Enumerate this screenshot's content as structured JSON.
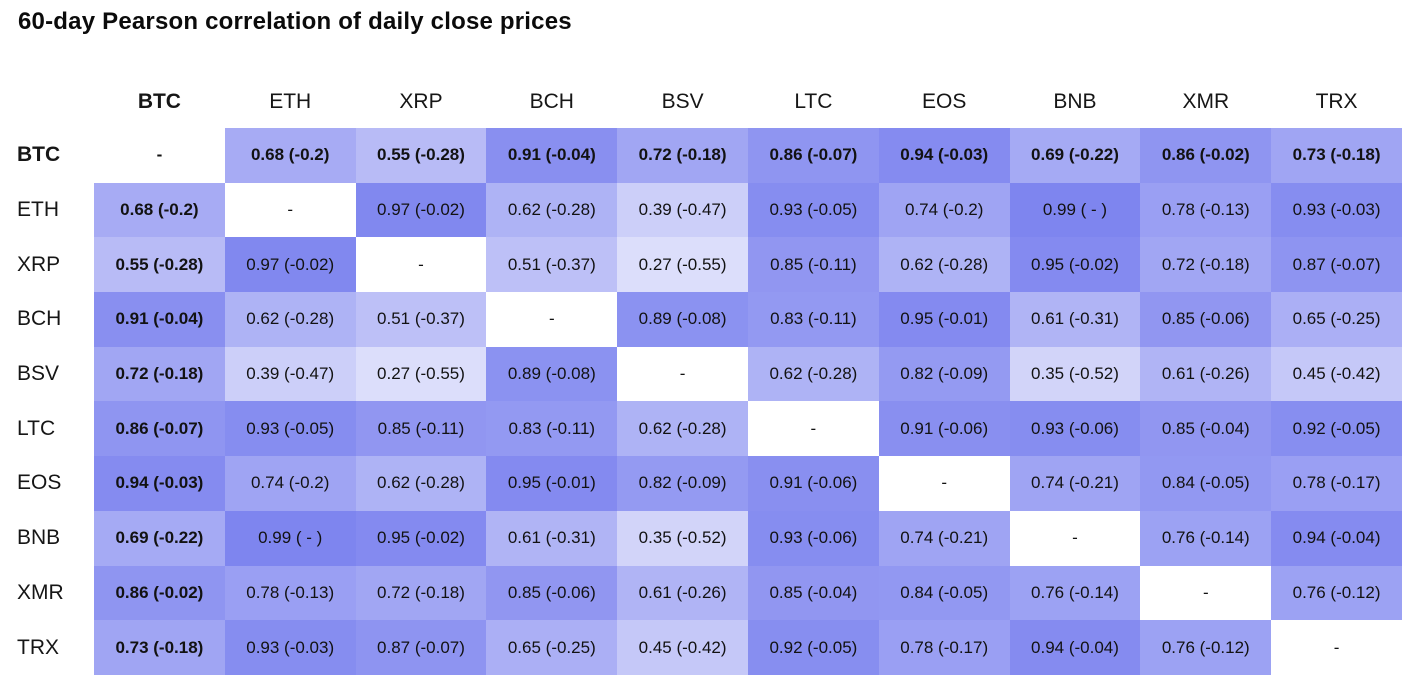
{
  "title": "60-day Pearson correlation of daily close prices",
  "chart_data": {
    "type": "heatmap",
    "title": "60-day Pearson correlation of daily close prices",
    "cell_value_format": "correlation (spread)",
    "labels": [
      "BTC",
      "ETH",
      "XRP",
      "BCH",
      "BSV",
      "LTC",
      "EOS",
      "BNB",
      "XMR",
      "TRX"
    ],
    "diagonal_label": "-",
    "corr": [
      [
        null,
        0.68,
        0.55,
        0.91,
        0.72,
        0.86,
        0.94,
        0.69,
        0.86,
        0.73
      ],
      [
        0.68,
        null,
        0.97,
        0.62,
        0.39,
        0.93,
        0.74,
        0.99,
        0.78,
        0.93
      ],
      [
        0.55,
        0.97,
        null,
        0.51,
        0.27,
        0.85,
        0.62,
        0.95,
        0.72,
        0.87
      ],
      [
        0.91,
        0.62,
        0.51,
        null,
        0.89,
        0.83,
        0.95,
        0.61,
        0.85,
        0.65
      ],
      [
        0.72,
        0.39,
        0.27,
        0.89,
        null,
        0.62,
        0.82,
        0.35,
        0.61,
        0.45
      ],
      [
        0.86,
        0.93,
        0.85,
        0.83,
        0.62,
        null,
        0.91,
        0.93,
        0.85,
        0.92
      ],
      [
        0.94,
        0.74,
        0.62,
        0.95,
        0.82,
        0.91,
        null,
        0.74,
        0.84,
        0.78
      ],
      [
        0.69,
        0.99,
        0.95,
        0.61,
        0.35,
        0.93,
        0.74,
        null,
        0.76,
        0.94
      ],
      [
        0.86,
        0.78,
        0.72,
        0.85,
        0.61,
        0.85,
        0.84,
        0.76,
        null,
        0.76
      ],
      [
        0.73,
        0.93,
        0.87,
        0.65,
        0.45,
        0.92,
        0.78,
        0.94,
        0.76,
        null
      ]
    ],
    "cell_labels": [
      [
        "-",
        "0.68 (-0.2)",
        "0.55 (-0.28)",
        "0.91 (-0.04)",
        "0.72 (-0.18)",
        "0.86 (-0.07)",
        "0.94 (-0.03)",
        "0.69 (-0.22)",
        "0.86 (-0.02)",
        "0.73 (-0.18)"
      ],
      [
        "0.68 (-0.2)",
        "-",
        "0.97 (-0.02)",
        "0.62 (-0.28)",
        "0.39 (-0.47)",
        "0.93 (-0.05)",
        "0.74 (-0.2)",
        "0.99 ( - )",
        "0.78 (-0.13)",
        "0.93 (-0.03)"
      ],
      [
        "0.55 (-0.28)",
        "0.97 (-0.02)",
        "-",
        "0.51 (-0.37)",
        "0.27 (-0.55)",
        "0.85 (-0.11)",
        "0.62 (-0.28)",
        "0.95 (-0.02)",
        "0.72 (-0.18)",
        "0.87 (-0.07)"
      ],
      [
        "0.91 (-0.04)",
        "0.62 (-0.28)",
        "0.51 (-0.37)",
        "-",
        "0.89 (-0.08)",
        "0.83 (-0.11)",
        "0.95 (-0.01)",
        "0.61 (-0.31)",
        "0.85 (-0.06)",
        "0.65 (-0.25)"
      ],
      [
        "0.72 (-0.18)",
        "0.39 (-0.47)",
        "0.27 (-0.55)",
        "0.89 (-0.08)",
        "-",
        "0.62 (-0.28)",
        "0.82 (-0.09)",
        "0.35 (-0.52)",
        "0.61 (-0.26)",
        "0.45 (-0.42)"
      ],
      [
        "0.86 (-0.07)",
        "0.93 (-0.05)",
        "0.85 (-0.11)",
        "0.83 (-0.11)",
        "0.62 (-0.28)",
        "-",
        "0.91 (-0.06)",
        "0.93 (-0.06)",
        "0.85 (-0.04)",
        "0.92 (-0.05)"
      ],
      [
        "0.94 (-0.03)",
        "0.74 (-0.2)",
        "0.62 (-0.28)",
        "0.95 (-0.01)",
        "0.82 (-0.09)",
        "0.91 (-0.06)",
        "-",
        "0.74 (-0.21)",
        "0.84 (-0.05)",
        "0.78 (-0.17)"
      ],
      [
        "0.69 (-0.22)",
        "0.99 ( - )",
        "0.95 (-0.02)",
        "0.61 (-0.31)",
        "0.35 (-0.52)",
        "0.93 (-0.06)",
        "0.74 (-0.21)",
        "-",
        "0.76 (-0.14)",
        "0.94 (-0.04)"
      ],
      [
        "0.86 (-0.02)",
        "0.78 (-0.13)",
        "0.72 (-0.18)",
        "0.85 (-0.06)",
        "0.61 (-0.26)",
        "0.85 (-0.04)",
        "0.84 (-0.05)",
        "0.76 (-0.14)",
        "-",
        "0.76 (-0.12)"
      ],
      [
        "0.73 (-0.18)",
        "0.93 (-0.03)",
        "0.87 (-0.07)",
        "0.65 (-0.25)",
        "0.45 (-0.42)",
        "0.92 (-0.05)",
        "0.78 (-0.17)",
        "0.94 (-0.04)",
        "0.76 (-0.12)",
        "-"
      ]
    ],
    "colorscale": {
      "min_value": 0,
      "max_value": 1,
      "min_color": "#ffffff",
      "max_color": "#7d84ef",
      "diagonal_color": "#ffffff"
    },
    "bold_row": "BTC",
    "bold_column": "BTC",
    "grid": false,
    "legend_position": "none"
  }
}
